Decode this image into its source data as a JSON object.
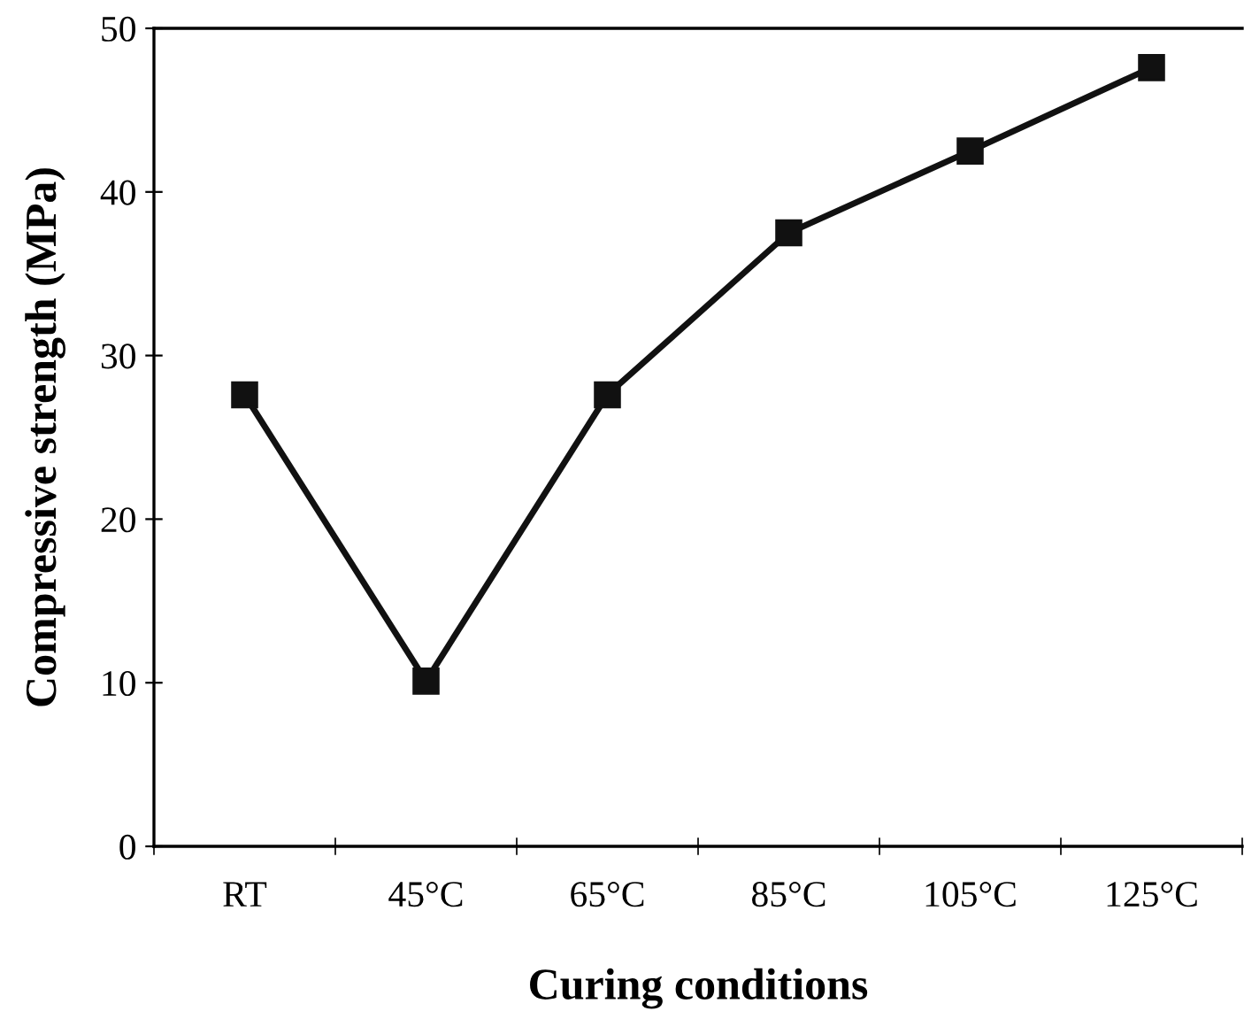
{
  "chart_data": {
    "type": "line",
    "xlabel": "Curing conditions",
    "ylabel": "Compressive strength (MPa)",
    "categories": [
      "RT",
      "45°C",
      "65°C",
      "85°C",
      "105°C",
      "125°C"
    ],
    "series": [
      {
        "color": "#111111",
        "values": [
          27.6,
          10.1,
          27.6,
          37.5,
          42.5,
          47.6
        ]
      }
    ],
    "ylim": [
      0,
      50
    ],
    "yticks": [
      0,
      10,
      20,
      30,
      40,
      50
    ],
    "marker": "square",
    "line_style": "solid",
    "grid": false,
    "legend": false
  }
}
